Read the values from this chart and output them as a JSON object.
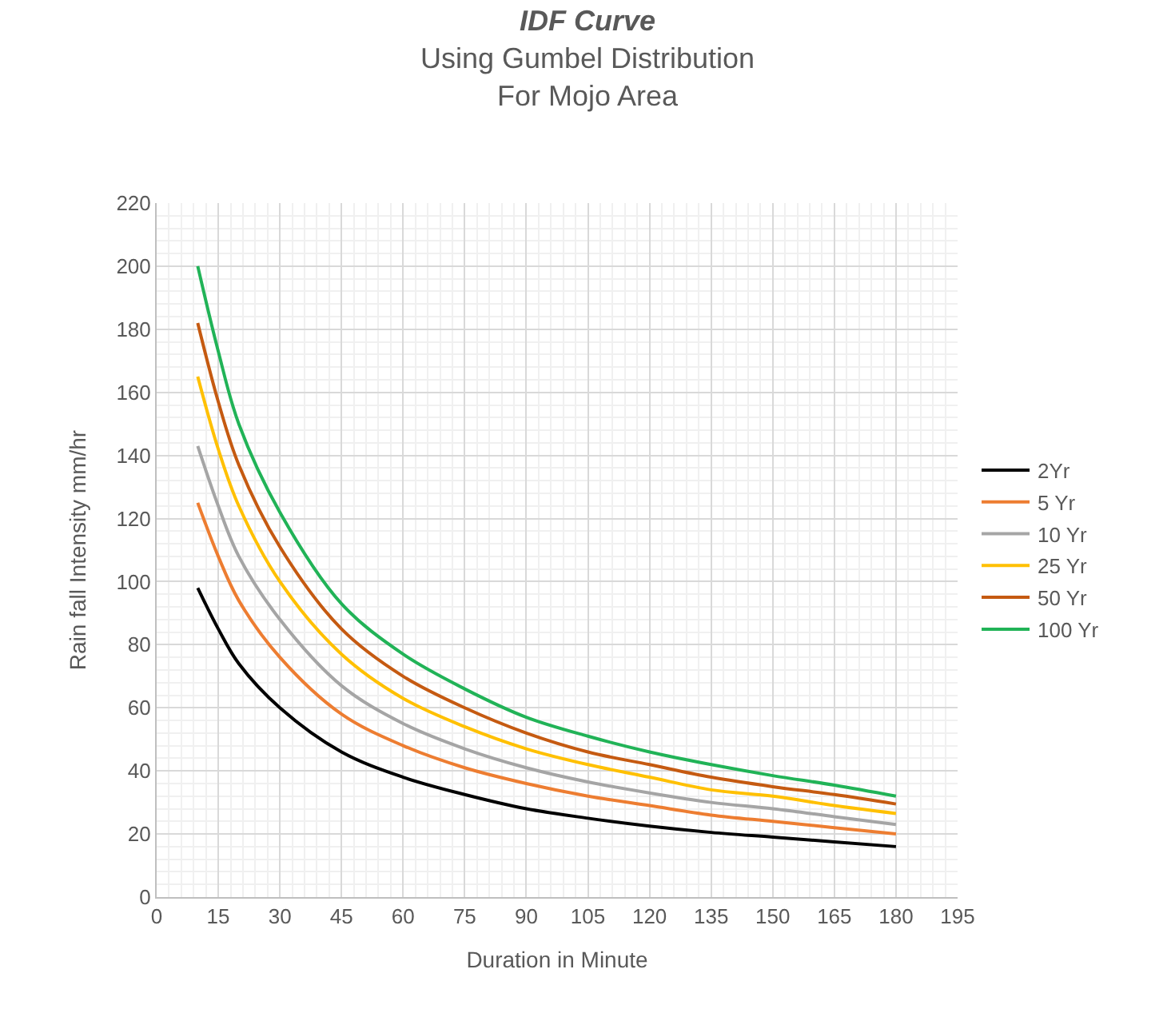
{
  "chart_data": {
    "type": "line",
    "title": "IDF Curve",
    "subtitle": "Using Gumbel Distribution\nFor Mojo Area",
    "xlabel": "Duration in Minute",
    "ylabel": "Rain fall Intensity mm/hr",
    "x": [
      10,
      15,
      20,
      30,
      45,
      60,
      75,
      90,
      105,
      120,
      135,
      150,
      165,
      180
    ],
    "series": [
      {
        "name": "2Yr",
        "color": "#000000",
        "values": [
          98,
          85,
          74,
          60,
          46,
          38,
          32.5,
          28,
          25,
          22.5,
          20.5,
          19,
          17.5,
          16
        ]
      },
      {
        "name": "5 Yr",
        "color": "#ed7d31",
        "values": [
          125,
          108,
          94,
          76,
          58,
          48,
          41,
          36,
          32,
          29,
          26,
          24,
          22,
          20
        ]
      },
      {
        "name": "10 Yr",
        "color": "#a5a5a5",
        "values": [
          143,
          124,
          108,
          88,
          67,
          55,
          47,
          41,
          36.5,
          33,
          30,
          28,
          25.5,
          23
        ]
      },
      {
        "name": "25 Yr",
        "color": "#ffc000",
        "values": [
          165,
          142,
          124,
          100,
          77,
          63,
          54,
          47,
          42,
          38,
          34,
          32,
          29,
          26.5
        ]
      },
      {
        "name": "50 Yr",
        "color": "#c55a11",
        "values": [
          182,
          157,
          137,
          111,
          85,
          70,
          60,
          52,
          46,
          42,
          38,
          35,
          32.5,
          29.5
        ]
      },
      {
        "name": "100 Yr",
        "color": "#21b357",
        "values": [
          200,
          173,
          150,
          122,
          93,
          77,
          66,
          57,
          51,
          46,
          42,
          38.5,
          35.5,
          32
        ]
      }
    ],
    "xlim": [
      0,
      195
    ],
    "xticks": [
      0,
      15,
      30,
      45,
      60,
      75,
      90,
      105,
      120,
      135,
      150,
      165,
      180,
      195
    ],
    "ylim": [
      0,
      220
    ],
    "yticks": [
      0,
      20,
      40,
      60,
      80,
      100,
      120,
      140,
      160,
      180,
      200,
      220
    ],
    "grid": true,
    "legend": "right",
    "marker": "none",
    "line_style": "solid"
  }
}
